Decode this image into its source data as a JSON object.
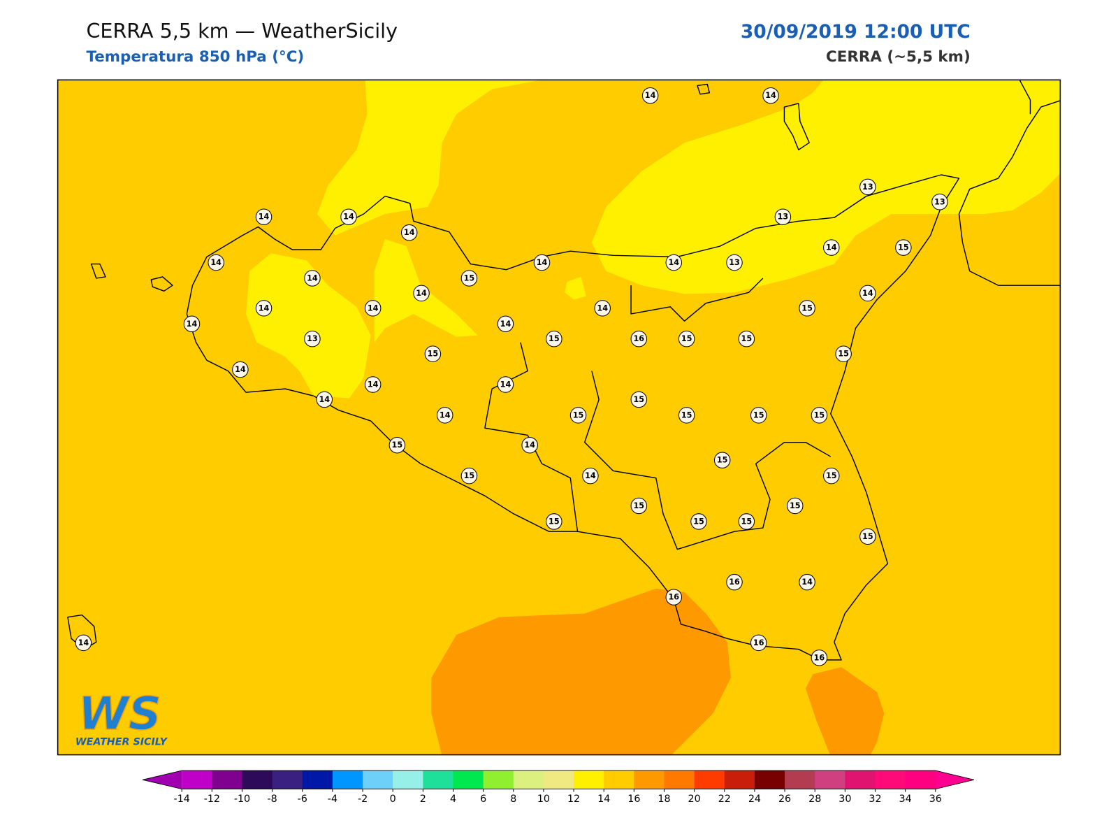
{
  "header": {
    "title": "CERRA 5,5 km — WeatherSicily",
    "subtitle": "Temperatura 850 hPa (°C)",
    "datetime": "30/09/2019 12:00 UTC",
    "model": "CERRA (~5,5 km)"
  },
  "map": {
    "stations": [
      14,
      14,
      13,
      13,
      13,
      14,
      14,
      14,
      14,
      14,
      15,
      14,
      14,
      13,
      14,
      15,
      14,
      14,
      14,
      14,
      14,
      15,
      14,
      13,
      14,
      15,
      16,
      15,
      15,
      15,
      15,
      14,
      14,
      14,
      14,
      15,
      14,
      15,
      15,
      15,
      15,
      15,
      14,
      15,
      15,
      14,
      15,
      15,
      15,
      15,
      15,
      15,
      15,
      16,
      14,
      16,
      16,
      16,
      14
    ]
  },
  "colorbar": {
    "ticks": [
      -14,
      -12,
      -10,
      -8,
      -6,
      -4,
      -2,
      0,
      2,
      4,
      6,
      8,
      10,
      12,
      14,
      16,
      18,
      20,
      22,
      24,
      26,
      28,
      30,
      32,
      34,
      36
    ],
    "colors": [
      "#c000c8",
      "#800090",
      "#2e0a5a",
      "#3a2080",
      "#0018a8",
      "#0096ff",
      "#6cd0f8",
      "#96f0e8",
      "#1ee09a",
      "#00e850",
      "#90f030",
      "#dcf080",
      "#f0e880",
      "#fff000",
      "#ffcc00",
      "#ff9900",
      "#ff7800",
      "#ff3c00",
      "#c81e0a",
      "#780000",
      "#b43c50",
      "#d04080",
      "#e01470",
      "#ff0a78",
      "#ff0080"
    ],
    "under_color": "#a000b0",
    "over_color": "#ff0090"
  },
  "logo": {
    "mark": "WS",
    "text": "WEATHER SICILY"
  }
}
